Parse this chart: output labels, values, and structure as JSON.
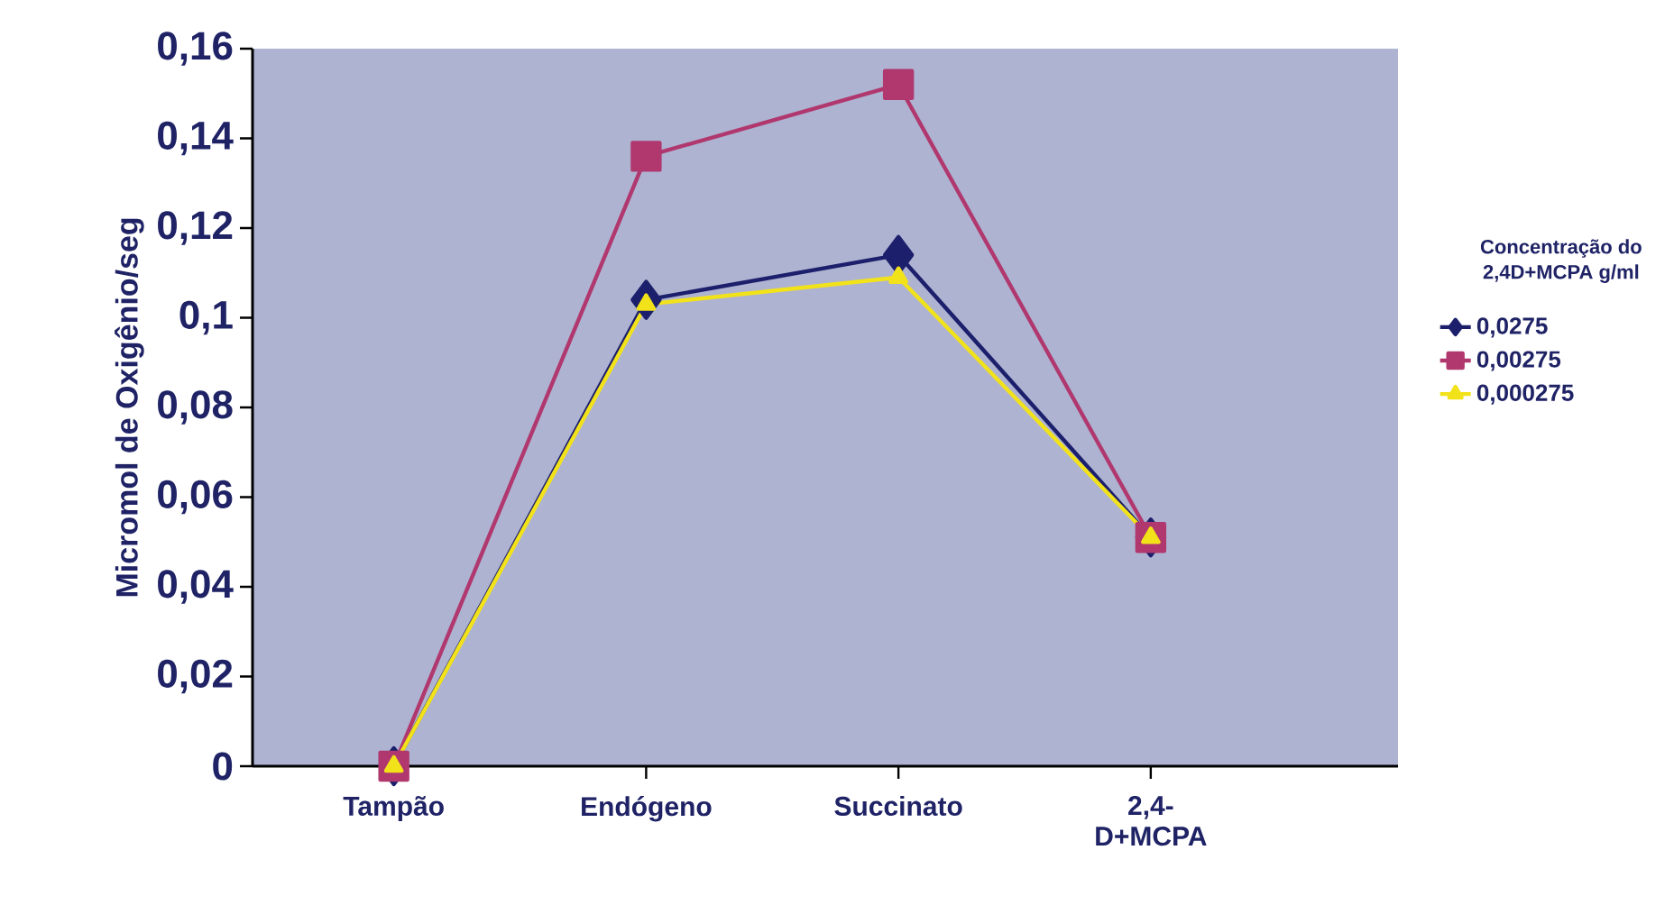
{
  "chart_data": {
    "type": "line",
    "ylabel": "Micromol de Oxigênio/seg",
    "legend_title": "Concentração do 2,4D+MCPA g/ml",
    "categories": [
      "Tampão",
      "Endógeno",
      "Succinato",
      "2,4-D+MCPA"
    ],
    "series": [
      {
        "name": "0,0275",
        "color": "#1c1f6b",
        "marker": "diamond",
        "values": [
          0,
          0.104,
          0.114,
          0.051
        ]
      },
      {
        "name": "0,00275",
        "color": "#b0386e",
        "marker": "square",
        "values": [
          0,
          0.136,
          0.152,
          0.051
        ]
      },
      {
        "name": "0,000275",
        "color": "#f2e21a",
        "marker": "triangle",
        "values": [
          0,
          0.103,
          0.109,
          0.051
        ]
      }
    ],
    "ylim": [
      0,
      0.16
    ],
    "yticks": [
      {
        "value": 0,
        "label": "0"
      },
      {
        "value": 0.02,
        "label": "0,02"
      },
      {
        "value": 0.04,
        "label": "0,04"
      },
      {
        "value": 0.06,
        "label": "0,06"
      },
      {
        "value": 0.08,
        "label": "0,08"
      },
      {
        "value": 0.1,
        "label": "0,1"
      },
      {
        "value": 0.12,
        "label": "0,12"
      },
      {
        "value": 0.14,
        "label": "0,14"
      },
      {
        "value": 0.16,
        "label": "0,16"
      }
    ],
    "grid": false,
    "legend": "right"
  }
}
